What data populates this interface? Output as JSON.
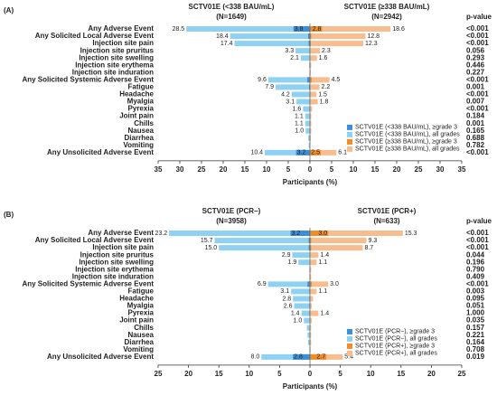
{
  "chart_data": [
    {
      "type": "butterfly-bar",
      "panel": "(A)",
      "left_title": "SCTV01E (<338 BAU/mL)",
      "left_subtitle": "(N=1649)",
      "right_title": "SCTV01E (≥338 BAU/mL)",
      "right_subtitle": "(N=2942)",
      "p_header": "p-value",
      "xlabel": "Participants (%)",
      "categories": [
        "Any Adverse Event",
        "Any Solicited Local Adverse Event",
        "Injection site pain",
        "Injection site pruritus",
        "Injection site swelling",
        "Injection site erythema",
        "Injection site induration",
        "Any Solicited Systemic Adverse Event",
        "Fatigue",
        "Headache",
        "Myalgia",
        "Pyrexia",
        "Joint pain",
        "Chills",
        "Nausea",
        "Diarrhea",
        "Vomiting",
        "Any Unsolicited Adverse Event"
      ],
      "p_values": [
        "<0.001",
        "<0.001",
        "<0.001",
        "0.056",
        "0.293",
        "0.446",
        "0.227",
        "<0.001",
        "0.001",
        "<0.001",
        "0.007",
        "<0.001",
        "0.184",
        "0.001",
        "0.165",
        "0.688",
        "0.782",
        "<0.001"
      ],
      "xlim": [
        0,
        35
      ],
      "xticks": [
        0,
        5,
        10,
        15,
        20,
        25,
        30,
        35
      ],
      "mirrored": true,
      "series": [
        {
          "name": "SCTV01E (<338 BAU/mL), ≥grade 3",
          "side": "left",
          "color": "#3b8fd8",
          "values": [
            3.8,
            0.4,
            0.3,
            0.1,
            0.1,
            0,
            0,
            0.6,
            0.2,
            0.1,
            0.1,
            0.1,
            0,
            0,
            0,
            0,
            0,
            3.2
          ],
          "value_labels": [
            "3.8",
            null,
            null,
            null,
            null,
            null,
            null,
            null,
            null,
            null,
            null,
            null,
            null,
            null,
            null,
            null,
            null,
            "3.2"
          ]
        },
        {
          "name": "SCTV01E (<338 BAU/mL), all grades",
          "side": "left",
          "color": "#8fd1f2",
          "values": [
            28.5,
            18.4,
            17.4,
            3.3,
            2.1,
            0.2,
            0.1,
            9.6,
            7.9,
            4.2,
            3.1,
            1.6,
            1.1,
            1.1,
            1.0,
            0.4,
            0.3,
            10.4
          ],
          "value_labels": [
            "28.5",
            "18.4",
            "17.4",
            "3.3",
            "2.1",
            null,
            null,
            "9.6",
            "7.9",
            "4.2",
            "3.1",
            "1.6",
            "1.1",
            "1.1",
            "1.0",
            null,
            null,
            "10.4"
          ]
        },
        {
          "name": "SCTV01E (≥338 BAU/mL), ≥grade 3",
          "side": "right",
          "color": "#f28c2a",
          "values": [
            2.8,
            0.3,
            0.2,
            0,
            0,
            0,
            0,
            0.4,
            0.1,
            0.1,
            0,
            0,
            0,
            0,
            0,
            0,
            0,
            2.5
          ],
          "value_labels": [
            "2.8",
            null,
            null,
            null,
            null,
            null,
            null,
            null,
            null,
            null,
            null,
            null,
            null,
            null,
            null,
            null,
            null,
            "2.5"
          ]
        },
        {
          "name": "SCTV01E (≥338 BAU/mL), all grades",
          "side": "right",
          "color": "#f8bd8e",
          "values": [
            18.6,
            12.8,
            12.3,
            2.3,
            1.6,
            0.3,
            0.2,
            4.5,
            2.2,
            1.5,
            1.8,
            0.5,
            0.3,
            0.3,
            0.3,
            0.2,
            0.1,
            6.1
          ],
          "value_labels": [
            "18.6",
            "12.8",
            "12.3",
            "2.3",
            "1.6",
            null,
            null,
            "4.5",
            "2.2",
            "1.5",
            "1.8",
            null,
            null,
            null,
            null,
            null,
            null,
            "6.1"
          ]
        }
      ]
    },
    {
      "type": "butterfly-bar",
      "panel": "(B)",
      "left_title": "SCTV01E (PCR−)",
      "left_subtitle": "(N=3958)",
      "right_title": "SCTV01E (PCR+)",
      "right_subtitle": "(N=633)",
      "p_header": "p-value",
      "xlabel": "Participants (%)",
      "categories": [
        "Any Adverse Event",
        "Any Solicited Local Adverse Event",
        "Injection site pain",
        "Injection site pruritus",
        "Injection site swelling",
        "Injection site erythema",
        "Injection site induration",
        "Any Solicited Systemic Adverse Event",
        "Fatigue",
        "Headache",
        "Myalgia",
        "Pyrexia",
        "Joint pain",
        "Chills",
        "Nausea",
        "Diarrhea",
        "Vomiting",
        "Any Unsolicited Adverse Event"
      ],
      "p_values": [
        "<0.001",
        "<0.001",
        "<0.001",
        "0.044",
        "0.196",
        "0.790",
        "0.409",
        "<0.001",
        "0.003",
        "0.095",
        "0.051",
        "1.000",
        "0.035",
        "0.157",
        "0.221",
        "0.164",
        "0.708",
        "0.019"
      ],
      "xlim": [
        0,
        25
      ],
      "xticks": [
        0,
        5,
        10,
        15,
        20,
        25
      ],
      "mirrored": true,
      "series": [
        {
          "name": "SCTV01E (PCR−), ≥grade 3",
          "side": "left",
          "color": "#3b8fd8",
          "values": [
            3.2,
            0.2,
            0.2,
            0,
            0,
            0,
            0,
            0.4,
            0.1,
            0.1,
            0.1,
            0.1,
            0,
            0,
            0,
            0,
            0,
            2.8
          ],
          "value_labels": [
            "3.2",
            null,
            null,
            null,
            null,
            null,
            null,
            null,
            null,
            null,
            null,
            null,
            null,
            null,
            null,
            null,
            null,
            "2.8"
          ]
        },
        {
          "name": "SCTV01E (PCR−), all grades",
          "side": "left",
          "color": "#8fd1f2",
          "values": [
            23.2,
            15.7,
            15.0,
            2.9,
            1.9,
            0.1,
            0.1,
            6.9,
            3.1,
            2.8,
            2.6,
            1.4,
            1.0,
            0.5,
            0.4,
            0.3,
            0.1,
            8.0
          ],
          "value_labels": [
            "23.2",
            "15.7",
            "15.0",
            "2.9",
            "1.9",
            null,
            null,
            "6.9",
            "3.1",
            "2.8",
            "2.6",
            "1.4",
            "1.0",
            null,
            null,
            null,
            null,
            "8.0"
          ]
        },
        {
          "name": "SCTV01E (PCR+), ≥grade 3",
          "side": "right",
          "color": "#f28c2a",
          "values": [
            3.0,
            0.2,
            0.2,
            0,
            0,
            0,
            0,
            0.3,
            0,
            0,
            0,
            0,
            0,
            0,
            0,
            0,
            0,
            2.7
          ],
          "value_labels": [
            "3.0",
            null,
            null,
            null,
            null,
            null,
            null,
            null,
            null,
            null,
            null,
            null,
            null,
            null,
            null,
            null,
            null,
            "2.7"
          ]
        },
        {
          "name": "SCTV01E (PCR+), all grades",
          "side": "right",
          "color": "#f8bd8e",
          "values": [
            15.3,
            9.3,
            8.7,
            1.4,
            1.1,
            0.2,
            0.2,
            3.0,
            1.1,
            0.5,
            0.3,
            1.4,
            0.3,
            0.2,
            0.2,
            0.2,
            0.1,
            5.4
          ],
          "value_labels": [
            "15.3",
            "9.3",
            "8.7",
            "1.4",
            "1.1",
            null,
            null,
            "3.0",
            "1.1",
            null,
            null,
            "1.4",
            null,
            null,
            null,
            null,
            null,
            "5.4"
          ]
        }
      ]
    }
  ]
}
